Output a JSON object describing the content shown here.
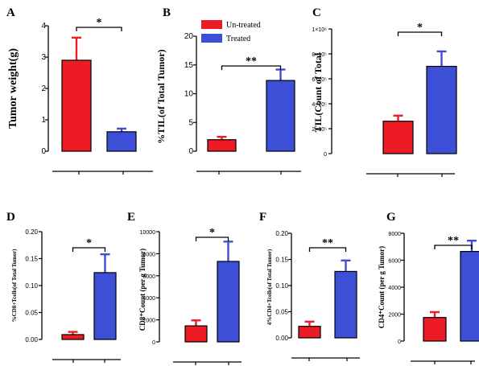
{
  "figure": {
    "legend": {
      "untreated": "Un-treated",
      "treated": "Treated"
    }
  },
  "colors": {
    "untreated": "#ed1c24",
    "treated": "#3d4fd6",
    "axis": "#000000"
  },
  "chart_data": [
    {
      "panel": "A",
      "type": "bar",
      "ylabel": "Tumor weight(g)",
      "categories": [
        "Un-treated",
        "Treated"
      ],
      "values": [
        2.9,
        0.62
      ],
      "errors": [
        0.72,
        0.1
      ],
      "ylim": [
        0,
        4
      ],
      "yticks": [
        "0",
        "1",
        "2",
        "3",
        "4"
      ],
      "significance": "*"
    },
    {
      "panel": "B",
      "type": "bar",
      "ylabel": "%TIL(of Total Tumor)",
      "categories": [
        "Un-treated",
        "Treated"
      ],
      "values": [
        2.0,
        12.3
      ],
      "errors": [
        0.5,
        1.9
      ],
      "ylim": [
        0,
        20
      ],
      "yticks": [
        "0",
        "5",
        "10",
        "15",
        "20"
      ],
      "significance": "**",
      "legend": [
        "Un-treated",
        "Treated"
      ]
    },
    {
      "panel": "C",
      "type": "bar",
      "ylabel": "TIL(Count of Total",
      "categories": [
        "Un-treated",
        "Treated"
      ],
      "values": [
        260000,
        700000
      ],
      "errors": [
        45000,
        120000
      ],
      "ylim": [
        0,
        1000000
      ],
      "yticks": [
        "0",
        "2×10⁵",
        "4×10⁵",
        "6×10⁵",
        "8×10⁵",
        "1×10⁶"
      ],
      "significance": "*"
    },
    {
      "panel": "D",
      "type": "bar",
      "ylabel": "%CD8+Tcells(of Total Tumor)",
      "categories": [
        "Un-treated",
        "Treated"
      ],
      "values": [
        0.009,
        0.124
      ],
      "errors": [
        0.005,
        0.034
      ],
      "ylim": [
        0,
        0.2
      ],
      "yticks": [
        "0.00",
        "0.05",
        "0.10",
        "0.15",
        "0.20"
      ],
      "significance": "*"
    },
    {
      "panel": "E",
      "type": "bar",
      "ylabel": "CD8⁺Count (per g Tumor)",
      "categories": [
        "Un-treated",
        "Treated"
      ],
      "values": [
        1450,
        7300
      ],
      "errors": [
        500,
        1800
      ],
      "ylim": [
        0,
        10000
      ],
      "yticks": [
        "0",
        "2000",
        "4000",
        "6000",
        "8000",
        "10000"
      ],
      "significance": "*"
    },
    {
      "panel": "F",
      "type": "bar",
      "ylabel": "4%CD4+Tcells(of Total Tumor)",
      "categories": [
        "Un-treated",
        "Treated"
      ],
      "values": [
        0.022,
        0.127
      ],
      "errors": [
        0.009,
        0.021
      ],
      "ylim": [
        0,
        0.2
      ],
      "yticks": [
        "0.00",
        "0.05",
        "0.10",
        "0.15",
        "0.20"
      ],
      "significance": "**"
    },
    {
      "panel": "G",
      "type": "bar",
      "ylabel": "CD4⁺Count (per g Tumor)",
      "categories": [
        "Un-treated",
        "Treated"
      ],
      "values": [
        1750,
        6650
      ],
      "errors": [
        400,
        800
      ],
      "ylim": [
        0,
        8000
      ],
      "yticks": [
        "0",
        "2000",
        "4000",
        "6000",
        "8000"
      ],
      "significance": "**"
    }
  ]
}
